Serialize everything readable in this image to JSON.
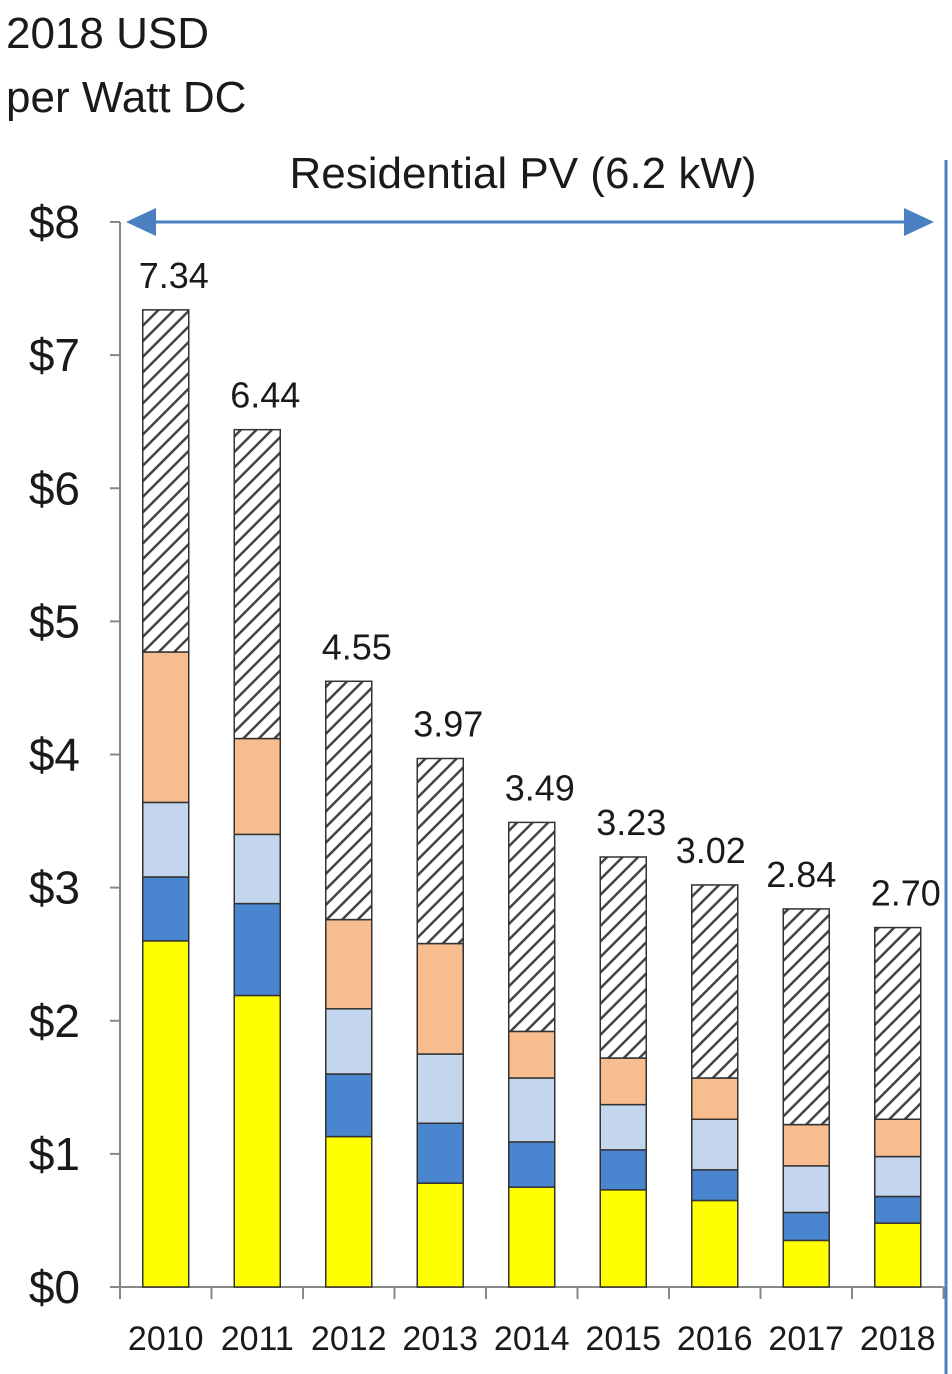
{
  "chart_data": {
    "type": "bar",
    "stacked": true,
    "title": "",
    "ylabel_lines": [
      "2018 USD",
      "per Watt DC"
    ],
    "span_label": "Residential PV (6.2 kW)",
    "ylim": [
      0,
      8
    ],
    "y_ticks": [
      {
        "value": 0,
        "label": "$0"
      },
      {
        "value": 1,
        "label": "$1"
      },
      {
        "value": 2,
        "label": "$2"
      },
      {
        "value": 3,
        "label": "$3"
      },
      {
        "value": 4,
        "label": "$4"
      },
      {
        "value": 5,
        "label": "$5"
      },
      {
        "value": 6,
        "label": "$6"
      },
      {
        "value": 7,
        "label": "$7"
      },
      {
        "value": 8,
        "label": "$8"
      }
    ],
    "categories": [
      "2010",
      "2011",
      "2012",
      "2013",
      "2014",
      "2015",
      "2016",
      "2017",
      "2018"
    ],
    "totals": [
      7.34,
      6.44,
      4.55,
      3.97,
      3.49,
      3.23,
      3.02,
      2.84,
      2.7
    ],
    "total_labels": [
      "7.34",
      "6.44",
      "4.55",
      "3.97",
      "3.49",
      "3.23",
      "3.02",
      "2.84",
      "2.70"
    ],
    "series": [
      {
        "key": "s1",
        "color": "#ffff00",
        "values": [
          2.6,
          2.19,
          1.13,
          0.78,
          0.75,
          0.73,
          0.65,
          0.35,
          0.48
        ]
      },
      {
        "key": "s2",
        "color": "#4a86d0",
        "values": [
          0.48,
          0.69,
          0.47,
          0.45,
          0.34,
          0.3,
          0.23,
          0.21,
          0.2
        ]
      },
      {
        "key": "s3",
        "color": "#c4d5ee",
        "values": [
          0.56,
          0.52,
          0.49,
          0.52,
          0.48,
          0.34,
          0.38,
          0.35,
          0.3
        ]
      },
      {
        "key": "s4",
        "color": "#f7bd8f",
        "values": [
          1.13,
          0.72,
          0.67,
          0.83,
          0.35,
          0.35,
          0.31,
          0.31,
          0.28
        ]
      },
      {
        "key": "s5",
        "color": "hatch",
        "values": [
          2.57,
          2.32,
          1.79,
          1.39,
          1.57,
          1.51,
          1.45,
          1.62,
          1.44
        ]
      }
    ],
    "colors": {
      "arrow": "#4a7fc1",
      "axis": "#888888",
      "bar_outline": "#333333",
      "hatch_line": "#444444"
    }
  }
}
